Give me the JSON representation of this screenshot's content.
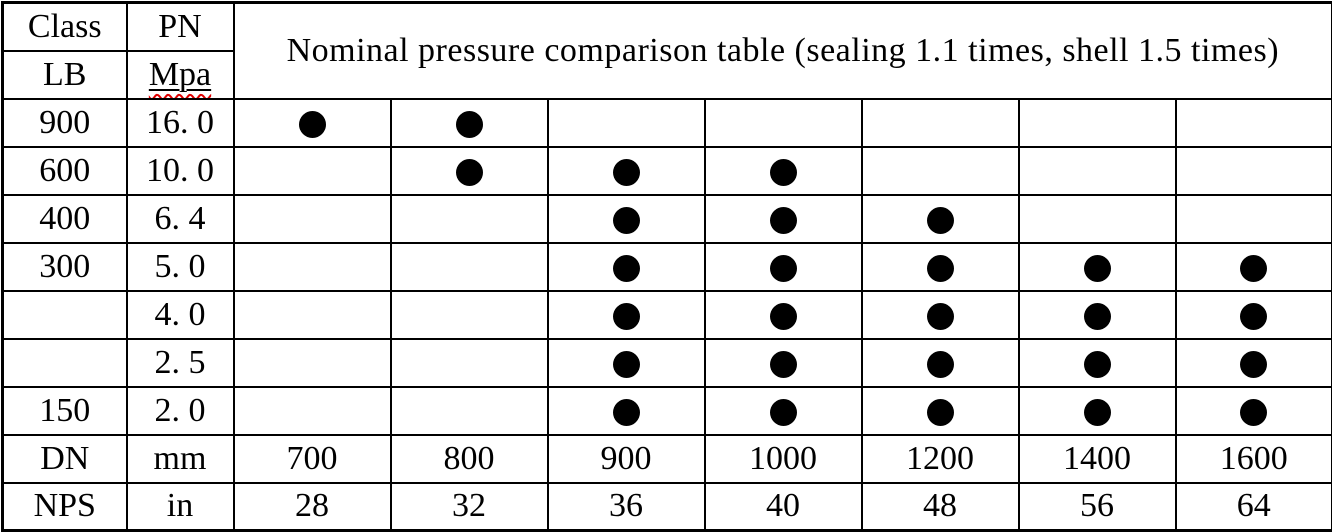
{
  "table": {
    "title": "Nominal pressure comparison table (sealing 1.1 times, shell 1.5 times)",
    "header": {
      "col1_top": "Class",
      "col1_bottom": "LB",
      "col2_top": "PN",
      "col2_bottom": "Mpa"
    },
    "pressure_rows": [
      {
        "class_lb": "900",
        "pn_mpa": "16. 0",
        "dots": [
          1,
          1,
          0,
          0,
          0,
          0,
          0
        ]
      },
      {
        "class_lb": "600",
        "pn_mpa": "10. 0",
        "dots": [
          0,
          1,
          1,
          1,
          0,
          0,
          0
        ]
      },
      {
        "class_lb": "400",
        "pn_mpa": "6. 4",
        "dots": [
          0,
          0,
          1,
          1,
          1,
          0,
          0
        ]
      },
      {
        "class_lb": "300",
        "pn_mpa": "5. 0",
        "dots": [
          0,
          0,
          1,
          1,
          1,
          1,
          1
        ]
      },
      {
        "class_lb": "",
        "pn_mpa": "4. 0",
        "dots": [
          0,
          0,
          1,
          1,
          1,
          1,
          1
        ]
      },
      {
        "class_lb": "",
        "pn_mpa": "2. 5",
        "dots": [
          0,
          0,
          1,
          1,
          1,
          1,
          1
        ]
      },
      {
        "class_lb": "150",
        "pn_mpa": "2. 0",
        "dots": [
          0,
          0,
          1,
          1,
          1,
          1,
          1
        ]
      }
    ],
    "footer_rows": [
      {
        "label": "DN",
        "unit": "mm",
        "values": [
          "700",
          "800",
          "900",
          "1000",
          "1200",
          "1400",
          "1600"
        ]
      },
      {
        "label": "NPS",
        "unit": "in",
        "values": [
          "28",
          "32",
          "36",
          "40",
          "48",
          "56",
          "64"
        ]
      }
    ],
    "colors": {
      "text": "#000000",
      "border": "#000000",
      "dot": "#000000",
      "spellcheck_underline": "#e00000",
      "background": "#ffffff"
    }
  },
  "chart_data": {
    "type": "table",
    "title": "Nominal pressure comparison table (sealing 1.1 times, shell 1.5 times)",
    "dn_mm": [
      700,
      800,
      900,
      1000,
      1200,
      1400,
      1600
    ],
    "nps_in": [
      28,
      32,
      36,
      40,
      48,
      56,
      64
    ],
    "rows": [
      {
        "class_lb": 900,
        "pn_mpa": 16.0,
        "available_dn": [
          700,
          800
        ]
      },
      {
        "class_lb": 600,
        "pn_mpa": 10.0,
        "available_dn": [
          800,
          900,
          1000
        ]
      },
      {
        "class_lb": 400,
        "pn_mpa": 6.4,
        "available_dn": [
          900,
          1000,
          1200
        ]
      },
      {
        "class_lb": 300,
        "pn_mpa": 5.0,
        "available_dn": [
          900,
          1000,
          1200,
          1400,
          1600
        ]
      },
      {
        "class_lb": null,
        "pn_mpa": 4.0,
        "available_dn": [
          900,
          1000,
          1200,
          1400,
          1600
        ]
      },
      {
        "class_lb": null,
        "pn_mpa": 2.5,
        "available_dn": [
          900,
          1000,
          1200,
          1400,
          1600
        ]
      },
      {
        "class_lb": 150,
        "pn_mpa": 2.0,
        "available_dn": [
          900,
          1000,
          1200,
          1400,
          1600
        ]
      }
    ]
  }
}
